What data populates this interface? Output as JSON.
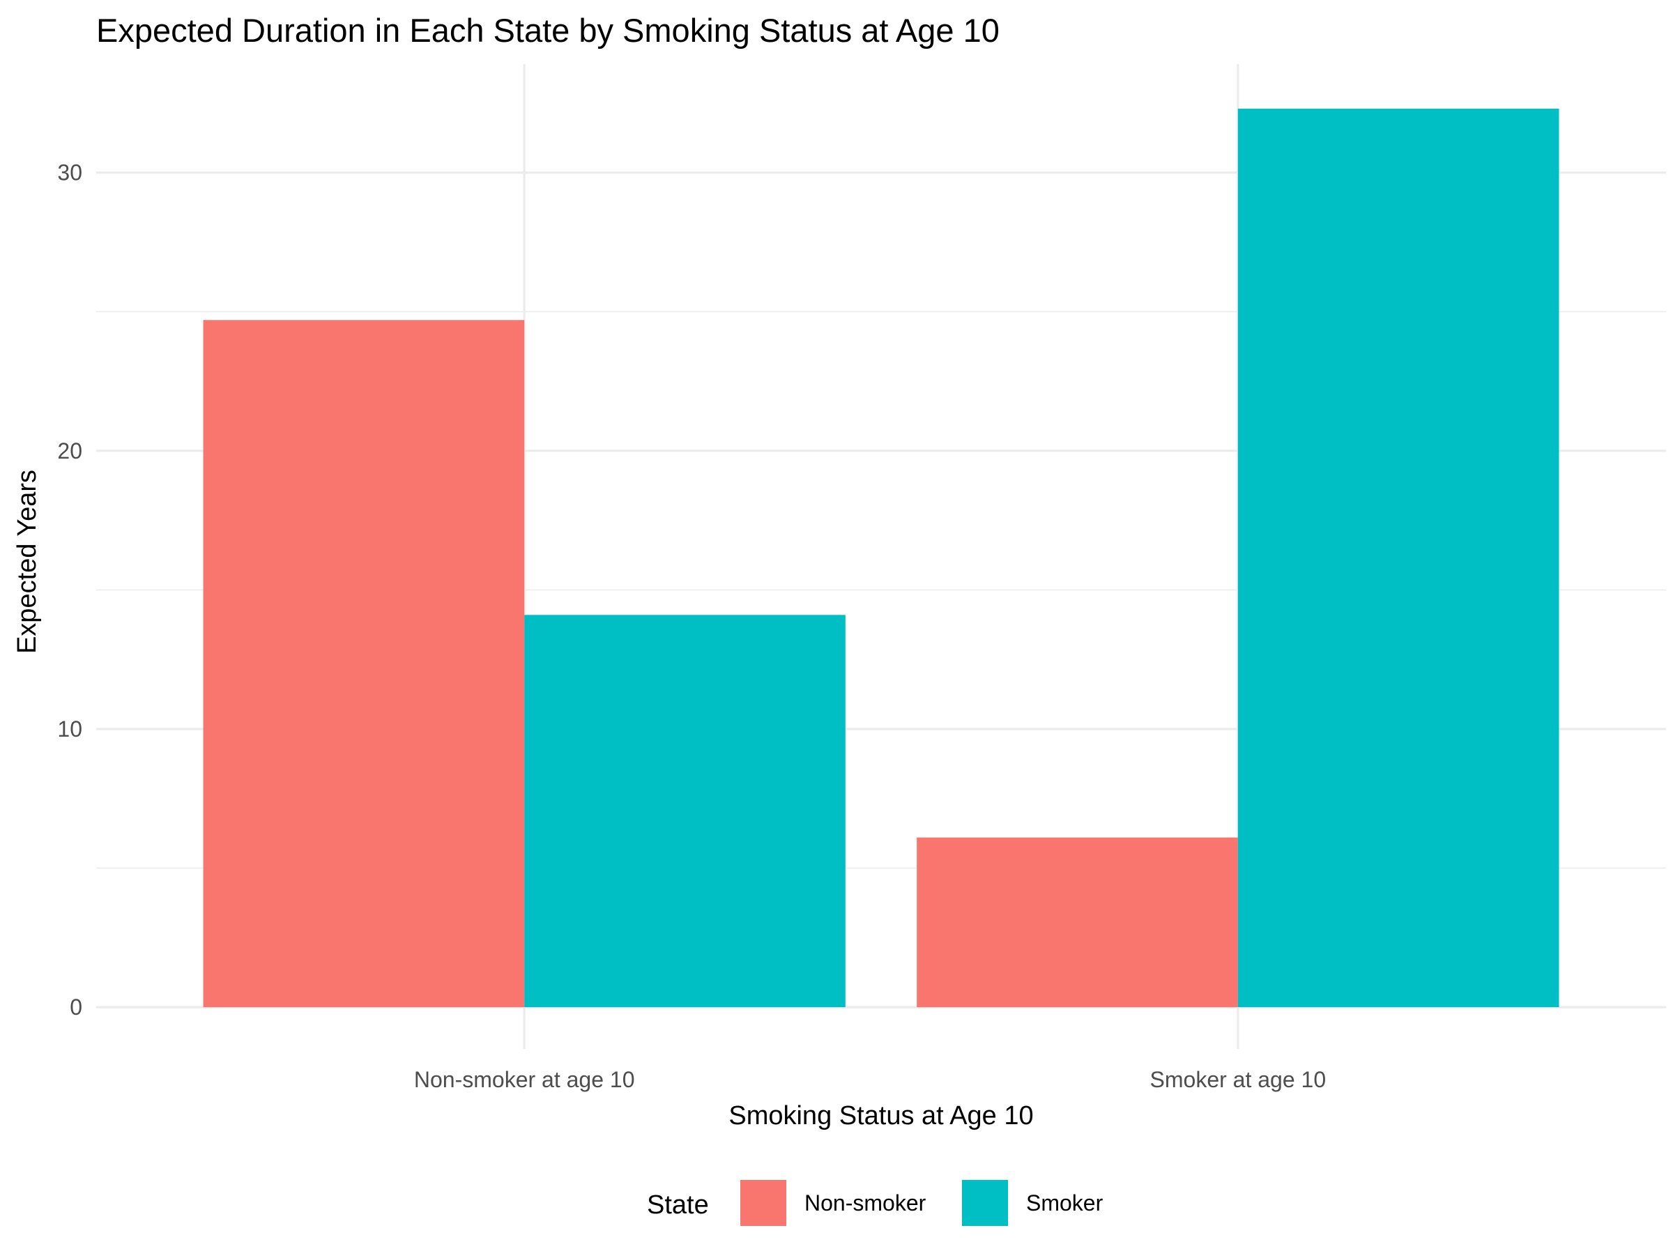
{
  "chart_data": {
    "type": "bar",
    "title": "Expected Duration in Each State by Smoking Status at Age 10",
    "xlabel": "Smoking Status at Age 10",
    "ylabel": "Expected Years",
    "categories": [
      "Non-smoker at age 10",
      "Smoker at age 10"
    ],
    "series": [
      {
        "name": "Non-smoker",
        "color": "#F8766D",
        "values": [
          24.7,
          6.1
        ]
      },
      {
        "name": "Smoker",
        "color": "#00BFC4",
        "values": [
          14.1,
          32.3
        ]
      }
    ],
    "ylim": [
      -1.5,
      33.9
    ],
    "yticks": [
      0,
      10,
      20,
      30
    ],
    "y_minor_ticks": [
      5,
      15,
      25
    ],
    "grid": true,
    "legend": {
      "title": "State",
      "position": "bottom"
    }
  }
}
